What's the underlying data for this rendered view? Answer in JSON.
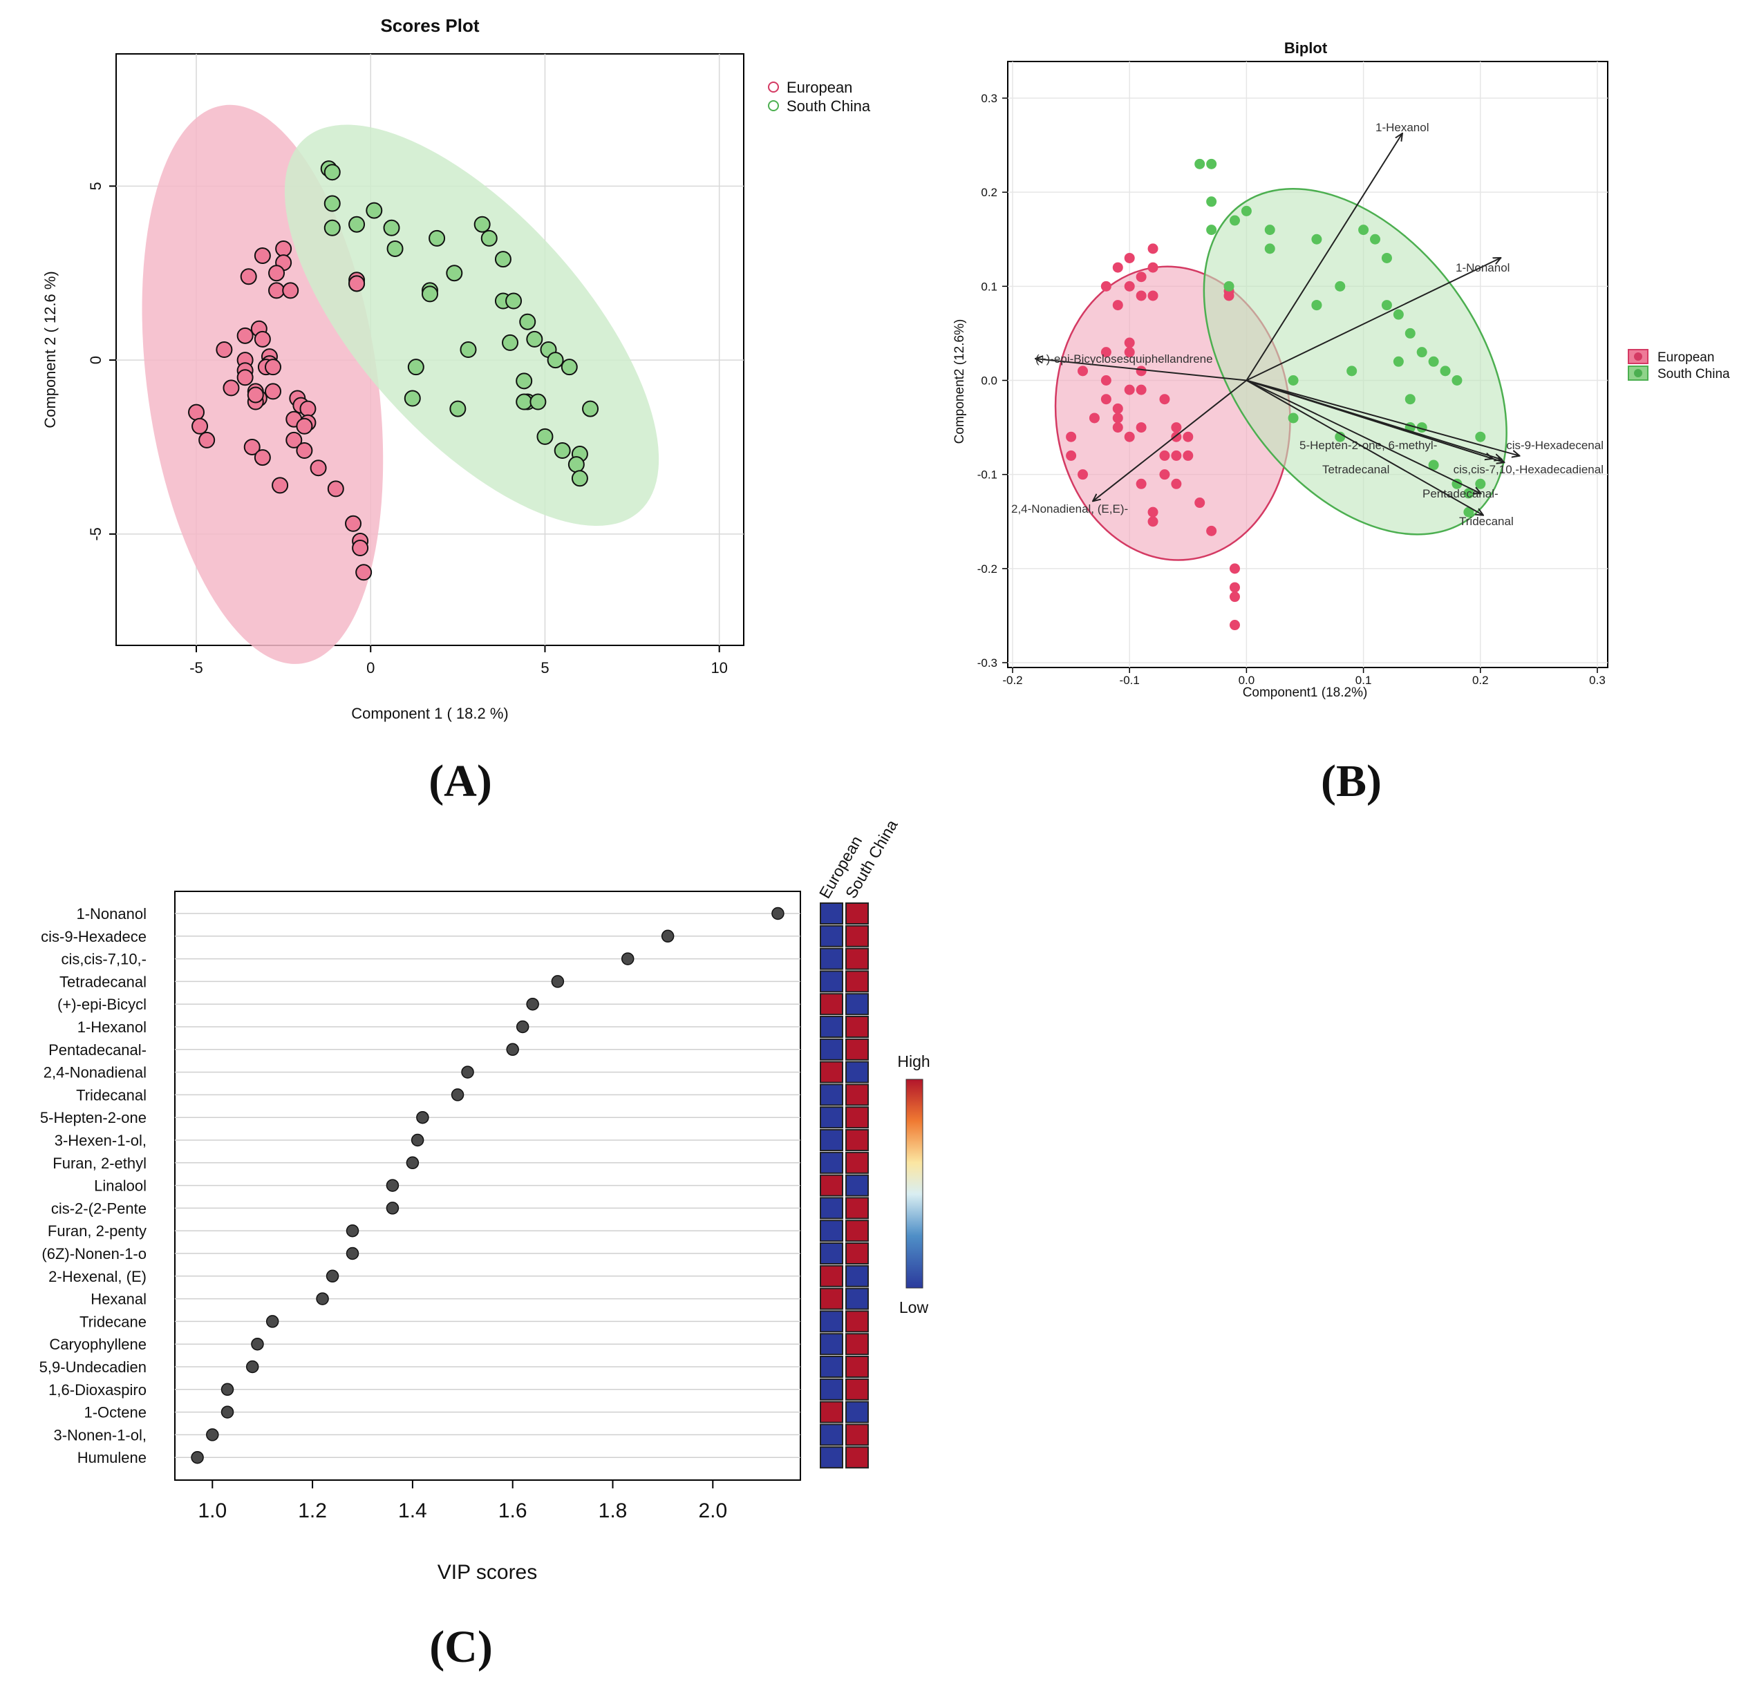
{
  "panel_labels": [
    "(A)",
    "(B)",
    "(C)"
  ],
  "colors": {
    "european_fill": "#ee7b98",
    "european_stroke": "#d43a63",
    "european_ellipse": "#f4b8c8",
    "southchina_fill": "#8fd38a",
    "southchina_stroke": "#4caf50",
    "southchina_ellipse": "#cfeccd",
    "heat_low": "#2b3a9c",
    "heat_high": "#b2162b",
    "vip_point": "#4a4a4a"
  },
  "chart_data": [
    {
      "type": "scatter",
      "title": "Scores Plot",
      "xlabel": "Component 1 ( 18.2 %)",
      "ylabel": "Component 2 ( 12.6 %)",
      "xlim": [
        -7.3,
        10.7
      ],
      "ylim": [
        -8.2,
        8.8
      ],
      "xticks": [
        -5,
        0,
        5,
        10
      ],
      "yticks": [
        -5,
        0,
        5
      ],
      "xtick_labels": [
        "-5",
        "0",
        "5",
        "10"
      ],
      "ytick_labels": [
        "-5",
        "0",
        "5"
      ],
      "grid": true,
      "legend": {
        "position": "top-right-outside",
        "entries": [
          "European",
          "South China"
        ]
      },
      "series": [
        {
          "name": "European",
          "ellipse": {
            "cx": -3.1,
            "cy": -0.7,
            "rx": 3.3,
            "ry": 8.1,
            "angle": -8
          },
          "points": [
            [
              -2.5,
              3.2
            ],
            [
              -3.1,
              3.0
            ],
            [
              -2.5,
              2.8
            ],
            [
              -3.5,
              2.4
            ],
            [
              -2.7,
              2.5
            ],
            [
              -2.7,
              2.0
            ],
            [
              -2.3,
              2.0
            ],
            [
              -3.2,
              0.9
            ],
            [
              -3.6,
              0.7
            ],
            [
              -3.1,
              0.6
            ],
            [
              -4.2,
              0.3
            ],
            [
              -2.9,
              0.1
            ],
            [
              -3.6,
              0.0
            ],
            [
              -2.9,
              -0.1
            ],
            [
              -3.0,
              -0.2
            ],
            [
              -2.8,
              -0.2
            ],
            [
              -3.6,
              -0.3
            ],
            [
              -3.6,
              -0.5
            ],
            [
              -4.0,
              -0.8
            ],
            [
              -2.8,
              -0.9
            ],
            [
              -3.3,
              -0.9
            ],
            [
              -3.2,
              -1.1
            ],
            [
              -3.3,
              -1.2
            ],
            [
              -2.1,
              -1.1
            ],
            [
              -2.0,
              -1.3
            ],
            [
              -1.8,
              -1.4
            ],
            [
              -2.2,
              -1.7
            ],
            [
              -1.8,
              -1.8
            ],
            [
              -1.9,
              -1.9
            ],
            [
              -5.0,
              -1.5
            ],
            [
              -4.9,
              -1.9
            ],
            [
              -4.7,
              -2.3
            ],
            [
              -2.2,
              -2.3
            ],
            [
              -3.4,
              -2.5
            ],
            [
              -1.9,
              -2.6
            ],
            [
              -3.1,
              -2.8
            ],
            [
              -1.5,
              -3.1
            ],
            [
              -2.6,
              -3.6
            ],
            [
              -1.0,
              -3.7
            ],
            [
              -0.5,
              -4.7
            ],
            [
              -0.3,
              -5.2
            ],
            [
              -0.3,
              -5.4
            ],
            [
              -0.2,
              -6.1
            ],
            [
              -0.4,
              2.3
            ],
            [
              -0.4,
              2.2
            ],
            [
              -0.4,
              2.2
            ],
            [
              -3.3,
              -1.0
            ]
          ]
        },
        {
          "name": "South China",
          "ellipse": {
            "cx": 2.9,
            "cy": 1.0,
            "rx": 3.2,
            "ry": 7.2,
            "angle": -42
          },
          "points": [
            [
              -1.2,
              5.5
            ],
            [
              -1.1,
              5.4
            ],
            [
              -1.1,
              4.5
            ],
            [
              0.1,
              4.3
            ],
            [
              -0.4,
              3.9
            ],
            [
              -1.1,
              3.8
            ],
            [
              3.2,
              3.9
            ],
            [
              0.6,
              3.8
            ],
            [
              3.4,
              3.5
            ],
            [
              1.9,
              3.5
            ],
            [
              0.7,
              3.2
            ],
            [
              3.8,
              2.9
            ],
            [
              2.4,
              2.5
            ],
            [
              1.7,
              2.0
            ],
            [
              1.7,
              1.9
            ],
            [
              3.8,
              1.7
            ],
            [
              4.1,
              1.7
            ],
            [
              4.5,
              1.1
            ],
            [
              4.0,
              0.5
            ],
            [
              4.7,
              0.6
            ],
            [
              2.8,
              0.3
            ],
            [
              5.1,
              0.3
            ],
            [
              5.3,
              0.0
            ],
            [
              5.7,
              -0.2
            ],
            [
              1.3,
              -0.2
            ],
            [
              4.4,
              -0.6
            ],
            [
              1.2,
              -1.1
            ],
            [
              4.5,
              -1.2
            ],
            [
              4.4,
              -1.2
            ],
            [
              4.8,
              -1.2
            ],
            [
              6.3,
              -1.4
            ],
            [
              2.5,
              -1.4
            ],
            [
              5.0,
              -2.2
            ],
            [
              5.5,
              -2.6
            ],
            [
              6.0,
              -2.7
            ],
            [
              5.9,
              -3.0
            ],
            [
              6.0,
              -3.4
            ]
          ]
        }
      ]
    },
    {
      "type": "scatter",
      "title": "Biplot",
      "xlabel": "Component1 (18.2%)",
      "ylabel": "Component2 (12.6%)",
      "xlim": [
        -0.2,
        0.3
      ],
      "ylim": [
        -0.3,
        0.3
      ],
      "xticks": [
        -0.2,
        -0.1,
        0.0,
        0.1,
        0.2,
        0.3
      ],
      "yticks": [
        -0.3,
        -0.2,
        -0.1,
        0.0,
        0.1,
        0.2,
        0.3
      ],
      "xtick_labels": [
        "-0.2",
        "-0.1",
        "0.0",
        "0.1",
        "0.2",
        "0.3"
      ],
      "ytick_labels": [
        "-0.3",
        "-0.2",
        "-0.1",
        "0.0",
        "0.1",
        "0.2",
        "0.3"
      ],
      "grid": true,
      "legend": {
        "position": "right",
        "entries": [
          "European",
          "South China"
        ]
      },
      "series": [
        {
          "name": "European",
          "ellipse": {
            "cx": -0.063,
            "cy": -0.035,
            "rx": 0.1,
            "ry": 0.25,
            "angle": -6
          },
          "points": [
            [
              -0.08,
              0.14
            ],
            [
              -0.1,
              0.13
            ],
            [
              -0.08,
              0.12
            ],
            [
              -0.11,
              0.12
            ],
            [
              -0.09,
              0.11
            ],
            [
              -0.12,
              0.1
            ],
            [
              -0.1,
              0.1
            ],
            [
              -0.09,
              0.09
            ],
            [
              -0.08,
              0.09
            ],
            [
              -0.11,
              0.08
            ],
            [
              -0.1,
              0.04
            ],
            [
              -0.12,
              0.03
            ],
            [
              -0.1,
              0.03
            ],
            [
              -0.14,
              0.01
            ],
            [
              -0.09,
              0.01
            ],
            [
              -0.12,
              0.0
            ],
            [
              -0.1,
              -0.01
            ],
            [
              -0.09,
              -0.01
            ],
            [
              -0.12,
              -0.02
            ],
            [
              -0.11,
              -0.03
            ],
            [
              -0.07,
              -0.02
            ],
            [
              -0.13,
              -0.04
            ],
            [
              -0.11,
              -0.04
            ],
            [
              -0.11,
              -0.05
            ],
            [
              -0.09,
              -0.05
            ],
            [
              -0.06,
              -0.05
            ],
            [
              -0.06,
              -0.06
            ],
            [
              -0.05,
              -0.06
            ],
            [
              -0.1,
              -0.06
            ],
            [
              -0.15,
              -0.06
            ],
            [
              -0.06,
              -0.08
            ],
            [
              -0.07,
              -0.08
            ],
            [
              -0.05,
              -0.08
            ],
            [
              -0.15,
              -0.08
            ],
            [
              -0.14,
              -0.1
            ],
            [
              -0.07,
              -0.1
            ],
            [
              -0.09,
              -0.11
            ],
            [
              -0.06,
              -0.11
            ],
            [
              -0.04,
              -0.13
            ],
            [
              -0.08,
              -0.14
            ],
            [
              -0.08,
              -0.15
            ],
            [
              -0.03,
              -0.16
            ],
            [
              -0.01,
              -0.2
            ],
            [
              -0.01,
              -0.22
            ],
            [
              -0.01,
              -0.23
            ],
            [
              -0.01,
              -0.26
            ],
            [
              -0.015,
              0.095
            ],
            [
              -0.015,
              0.09
            ]
          ]
        },
        {
          "name": "South China",
          "ellipse": {
            "cx": 0.093,
            "cy": 0.02,
            "rx": 0.105,
            "ry": 0.33,
            "angle": -36
          },
          "points": [
            [
              -0.04,
              0.23
            ],
            [
              -0.03,
              0.23
            ],
            [
              -0.03,
              0.19
            ],
            [
              0.0,
              0.18
            ],
            [
              -0.01,
              0.17
            ],
            [
              -0.03,
              0.16
            ],
            [
              0.1,
              0.16
            ],
            [
              0.02,
              0.16
            ],
            [
              0.11,
              0.15
            ],
            [
              0.06,
              0.15
            ],
            [
              0.02,
              0.14
            ],
            [
              0.12,
              0.13
            ],
            [
              0.08,
              0.1
            ],
            [
              0.06,
              0.08
            ],
            [
              0.06,
              0.08
            ],
            [
              0.12,
              0.08
            ],
            [
              0.13,
              0.07
            ],
            [
              0.14,
              0.05
            ],
            [
              0.13,
              0.02
            ],
            [
              0.15,
              0.03
            ],
            [
              0.09,
              0.01
            ],
            [
              0.16,
              0.02
            ],
            [
              0.17,
              0.01
            ],
            [
              0.18,
              0.0
            ],
            [
              0.04,
              0.0
            ],
            [
              0.14,
              -0.02
            ],
            [
              0.04,
              -0.04
            ],
            [
              0.14,
              -0.05
            ],
            [
              0.14,
              -0.05
            ],
            [
              0.15,
              -0.05
            ],
            [
              0.2,
              -0.06
            ],
            [
              0.08,
              -0.06
            ],
            [
              0.16,
              -0.09
            ],
            [
              0.18,
              -0.11
            ],
            [
              0.2,
              -0.11
            ],
            [
              0.19,
              -0.12
            ],
            [
              0.19,
              -0.14
            ],
            [
              -0.015,
              0.1
            ]
          ]
        }
      ],
      "loadings": [
        {
          "label": "1-Hexanol",
          "x": 0.133,
          "y": 0.262
        },
        {
          "label": "1-Nonanol",
          "x": 0.217,
          "y": 0.13
        },
        {
          "label": "(+)-epi-Bicyclosesquiphellandrene",
          "x": -0.18,
          "y": 0.023
        },
        {
          "label": "2,4-Nonadienal, (E,E)-",
          "x": -0.131,
          "y": -0.128
        },
        {
          "label": "5-Hepten-2-one, 6-methyl-",
          "x": 0.218,
          "y": -0.084
        },
        {
          "label": "cis-9-Hexadecenal",
          "x": 0.233,
          "y": -0.08
        },
        {
          "label": "Tetradecanal",
          "x": 0.21,
          "y": -0.083
        },
        {
          "label": "cis,cis-7,10,-Hexadecadienal",
          "x": 0.22,
          "y": -0.087
        },
        {
          "label": "Pentadecanal-",
          "x": 0.2,
          "y": -0.12
        },
        {
          "label": "Tridecanal",
          "x": 0.202,
          "y": -0.143
        }
      ]
    },
    {
      "type": "scatter",
      "title": "",
      "xlabel": "VIP scores",
      "ylabel": "",
      "xlim": [
        0.925,
        2.175
      ],
      "xticks": [
        1.0,
        1.2,
        1.4,
        1.6,
        1.8,
        2.0
      ],
      "xtick_labels": [
        "1.0",
        "1.2",
        "1.4",
        "1.6",
        "1.8",
        "2.0"
      ],
      "grid": true,
      "categories": [
        "1-Nonanol",
        "cis-9-Hexadece",
        "cis,cis-7,10,-",
        "Tetradecanal",
        "(+)-epi-Bicycl",
        "1-Hexanol",
        "Pentadecanal-",
        "2,4-Nonadienal",
        "Tridecanal",
        "5-Hepten-2-one",
        "3-Hexen-1-ol,",
        "Furan, 2-ethyl",
        "Linalool",
        "cis-2-(2-Pente",
        "Furan, 2-penty",
        "(6Z)-Nonen-1-o",
        "2-Hexenal, (E)",
        "Hexanal",
        "Tridecane",
        "Caryophyllene",
        "5,9-Undecadien",
        "1,6-Dioxaspiro",
        "1-Octene",
        "3-Nonen-1-ol,",
        "Humulene"
      ],
      "values": [
        2.13,
        1.91,
        1.83,
        1.69,
        1.64,
        1.62,
        1.6,
        1.51,
        1.49,
        1.42,
        1.41,
        1.4,
        1.36,
        1.36,
        1.28,
        1.28,
        1.24,
        1.22,
        1.12,
        1.09,
        1.08,
        1.03,
        1.03,
        1.0,
        0.97
      ],
      "heatmap": {
        "columns": [
          "European",
          "South China"
        ],
        "levels": [
          [
            0,
            1
          ],
          [
            0,
            1
          ],
          [
            0,
            1
          ],
          [
            0,
            1
          ],
          [
            1,
            0
          ],
          [
            0,
            1
          ],
          [
            0,
            1
          ],
          [
            1,
            0
          ],
          [
            0,
            1
          ],
          [
            0,
            1
          ],
          [
            0,
            1
          ],
          [
            0,
            1
          ],
          [
            1,
            0
          ],
          [
            0,
            1
          ],
          [
            0,
            1
          ],
          [
            0,
            1
          ],
          [
            1,
            0
          ],
          [
            1,
            0
          ],
          [
            0,
            1
          ],
          [
            0,
            1
          ],
          [
            0,
            1
          ],
          [
            0,
            1
          ],
          [
            1,
            0
          ],
          [
            0,
            1
          ],
          [
            0,
            1
          ]
        ],
        "colorbar_high": "High",
        "colorbar_low": "Low"
      }
    }
  ]
}
